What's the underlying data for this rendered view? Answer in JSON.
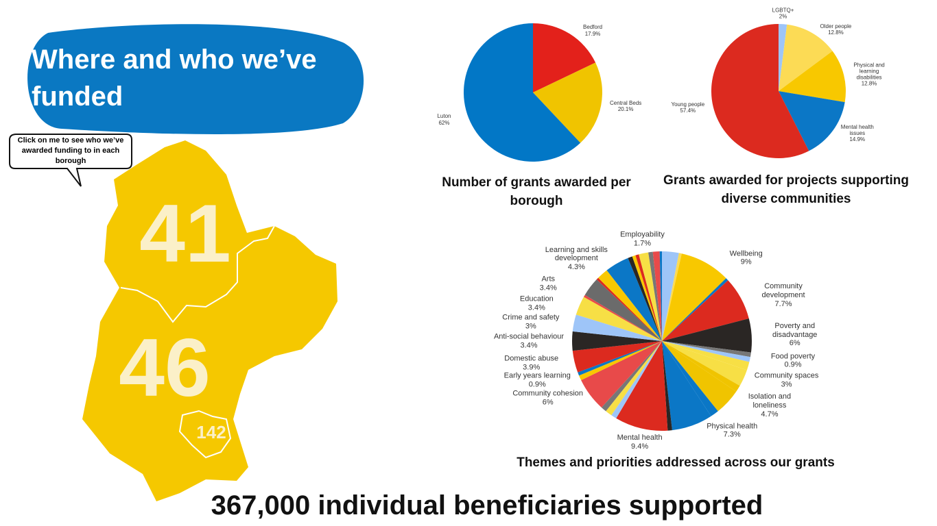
{
  "header": {
    "title": "Where and who we’ve funded"
  },
  "callout": {
    "text": "Click on me to see who we’ve awarded funding to in each borough"
  },
  "map": {
    "regions": [
      {
        "count": "41"
      },
      {
        "count": "46"
      },
      {
        "count": "142"
      }
    ]
  },
  "footer": {
    "text": "367,000 individual beneficiaries supported"
  },
  "chart_data": [
    {
      "type": "pie",
      "title": "Number of grants awarded per borough",
      "categories": [
        "Bedford",
        "Central Beds",
        "Luton"
      ],
      "values": [
        17.9,
        20.1,
        62
      ],
      "value_labels": [
        "17.9%",
        "20.1%",
        "62%"
      ],
      "colors": [
        "#e3211b",
        "#f0c400",
        "#0277c6"
      ]
    },
    {
      "type": "pie",
      "title": "Grants awarded for projects supporting diverse communities",
      "categories": [
        "LGBTQ+",
        "Older people",
        "Physical and learning disabilities",
        "Mental health issues",
        "Young people"
      ],
      "values": [
        2,
        12.8,
        12.8,
        14.9,
        57.4
      ],
      "value_labels": [
        "2%",
        "12.8%",
        "12.8%",
        "14.9%",
        "57.4%"
      ],
      "colors": [
        "#9ec5f8",
        "#fcdb55",
        "#f8c800",
        "#0b77c6",
        "#dc2a1f"
      ]
    },
    {
      "type": "pie",
      "title": "Themes and priorities addressed across our grants",
      "categories": [
        null,
        null,
        "Wellbeing",
        null,
        "Community development",
        "Poverty and disadvantage",
        null,
        "Food poverty",
        null,
        "Community spaces",
        null,
        "Isolation and loneliness",
        null,
        "Physical health",
        null,
        "Mental health",
        null,
        null,
        null,
        "Community cohesion",
        "Early years learning",
        null,
        "Domestic abuse",
        "Anti-social behaviour",
        "Crime and safety",
        "Education",
        null,
        "Arts",
        null,
        null,
        "Learning and skills development",
        null,
        null,
        null,
        "Employability",
        null,
        null,
        null
      ],
      "values": [
        3,
        0.5,
        9,
        0.5,
        7.7,
        6,
        0.8,
        0.9,
        1.5,
        3,
        1.2,
        4.7,
        1.5,
        7.3,
        0.8,
        9.4,
        1,
        1.2,
        1,
        6,
        0.9,
        0.6,
        3.9,
        3.4,
        3,
        3.4,
        0.4,
        3.4,
        0.4,
        2,
        4.3,
        0.8,
        0.6,
        0.6,
        1.7,
        0.8,
        1.2,
        0.4
      ],
      "value_labels": [
        null,
        null,
        "9%",
        null,
        "7.7%",
        "6%",
        null,
        "0.9%",
        null,
        "3%",
        null,
        "4.7%",
        null,
        "7.3%",
        null,
        "9.4%",
        null,
        null,
        null,
        "6%",
        "0.9%",
        null,
        "3.9%",
        "3.4%",
        "3%",
        "3.4%",
        null,
        "3.4%",
        null,
        null,
        "4.3%",
        null,
        null,
        null,
        "1.7%",
        null,
        null,
        null
      ],
      "colors": [
        "#9ec5f8",
        "#fcdb55",
        "#f8c800",
        "#0b77c6",
        "#dc2a1f",
        "#2a2624",
        "#777777",
        "#9ec5f8",
        "#f7df45",
        "#f7df45",
        "#f0c400",
        "#f0c400",
        "#0b77c6",
        "#0b77c6",
        "#2a2624",
        "#dc2a1f",
        "#9ec5f8",
        "#f7df45",
        "#777777",
        "#e84a4a",
        "#f8c800",
        "#0b77c6",
        "#dc2a1f",
        "#2a2624",
        "#9ec5f8",
        "#f7df45",
        "#e84a4a",
        "#6b6b6b",
        "#dc2a1f",
        "#f8c800",
        "#0b77c6",
        "#2a2624",
        "#f8c800",
        "#dc2a1f",
        "#f7df45",
        "#777777",
        "#e84a4a",
        "#0b77c6"
      ]
    }
  ]
}
